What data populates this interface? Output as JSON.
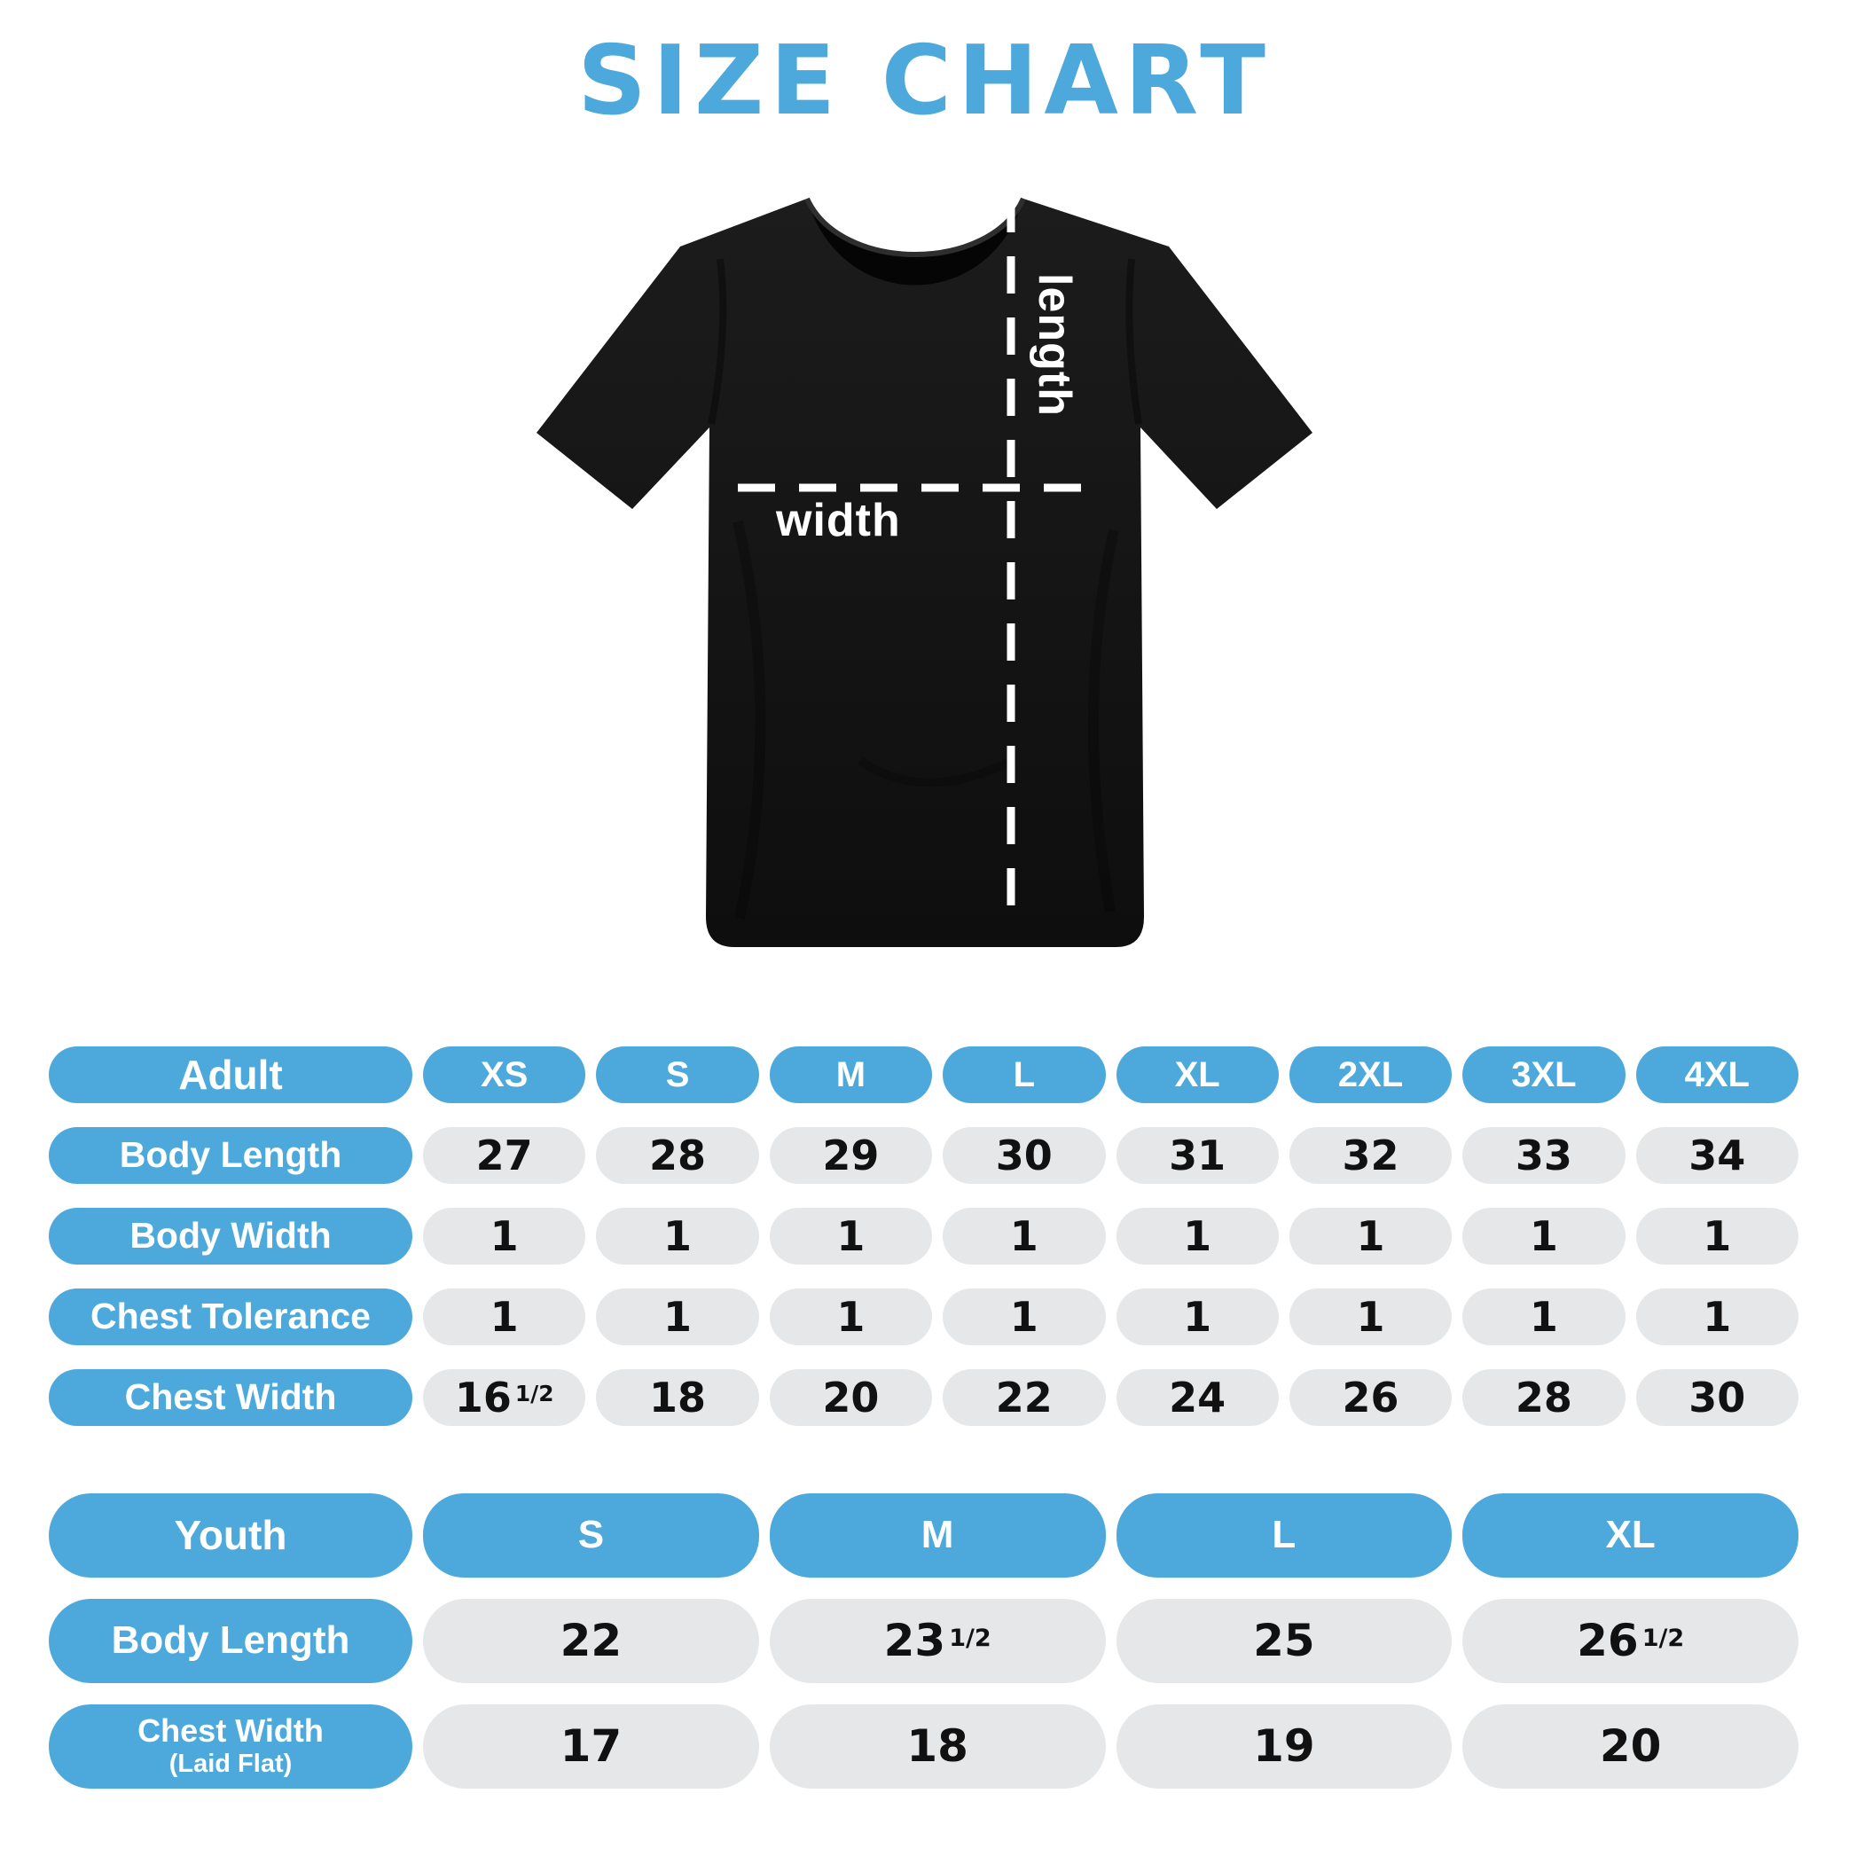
{
  "title": "SIZE CHART",
  "colors": {
    "accent": "#4da9dc",
    "cell_bg": "#e6e7e8",
    "text_dark": "#111111",
    "shirt": "#161616",
    "dash_line": "#ffffff"
  },
  "shirt": {
    "length_label": "length",
    "width_label": "width"
  },
  "chart_data": [
    {
      "type": "table",
      "name": "adult",
      "header_label": "Adult",
      "columns": [
        "XS",
        "S",
        "M",
        "L",
        "XL",
        "2XL",
        "3XL",
        "4XL"
      ],
      "rows": [
        {
          "label": "Body Length",
          "values": [
            "27",
            "28",
            "29",
            "30",
            "31",
            "32",
            "33",
            "34"
          ]
        },
        {
          "label": "Body Width",
          "values": [
            "1",
            "1",
            "1",
            "1",
            "1",
            "1",
            "1",
            "1"
          ]
        },
        {
          "label": "Chest Tolerance",
          "values": [
            "1",
            "1",
            "1",
            "1",
            "1",
            "1",
            "1",
            "1"
          ]
        },
        {
          "label": "Chest Width",
          "values": [
            "16 1/2",
            "18",
            "20",
            "22",
            "24",
            "26",
            "28",
            "30"
          ]
        }
      ]
    },
    {
      "type": "table",
      "name": "youth",
      "header_label": "Youth",
      "columns": [
        "S",
        "M",
        "L",
        "XL"
      ],
      "rows": [
        {
          "label": "Body Length",
          "values": [
            "22",
            "23 1/2",
            "25",
            "26 1/2"
          ]
        },
        {
          "label": "Chest Width",
          "sublabel": "(Laid Flat)",
          "values": [
            "17",
            "18",
            "19",
            "20"
          ]
        }
      ]
    }
  ]
}
